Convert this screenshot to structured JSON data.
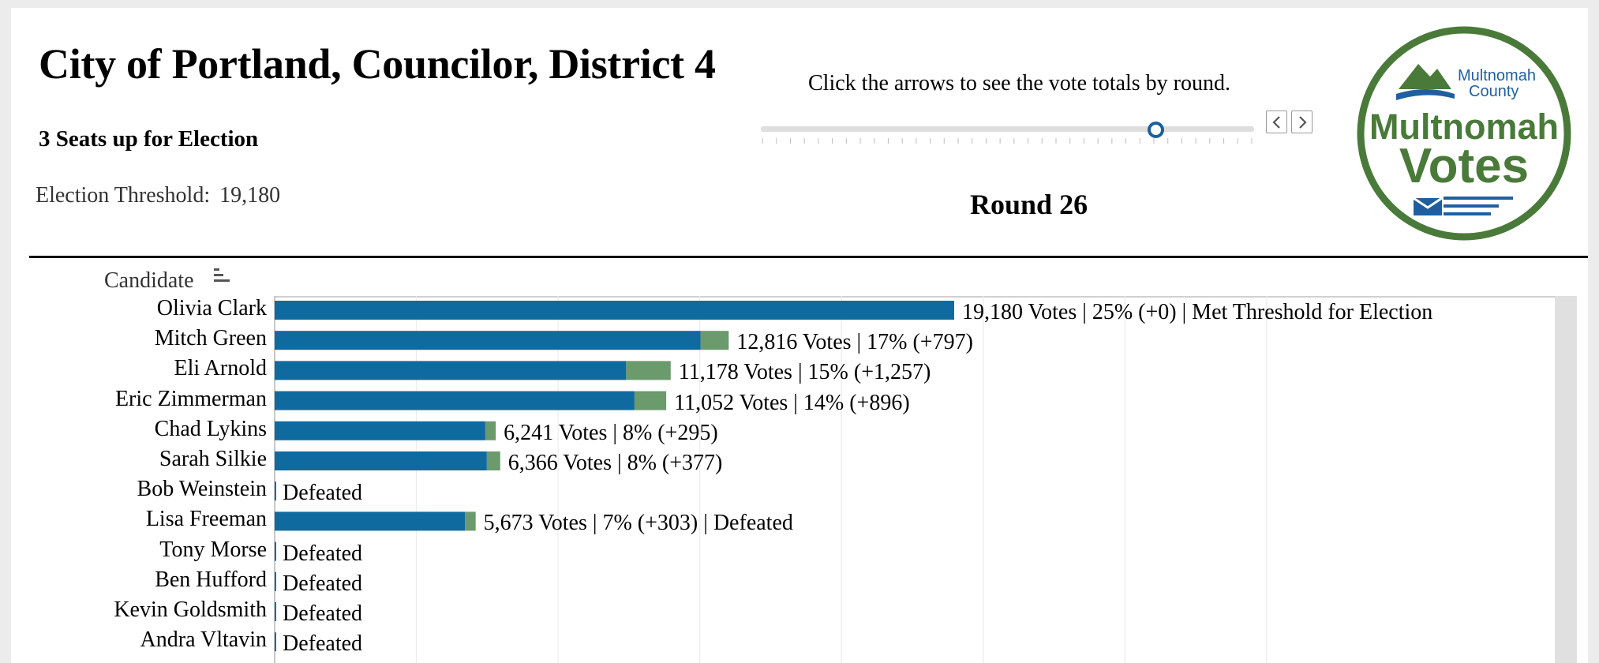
{
  "header": {
    "title": "City of Portland, Councilor, District 4",
    "subtitle": "3 Seats up for Election",
    "threshold_label": "Election Threshold:",
    "threshold_value": "19,180"
  },
  "round_control": {
    "instruction": "Click the arrows to see the vote totals by round.",
    "round_label": "Round 26",
    "slider_position_fraction": 0.8,
    "tick_count": 36
  },
  "logo": {
    "top_text": "Multnomah",
    "top_text2": "County",
    "main_text": "Multnomah",
    "main_text2": "Votes",
    "color": "#4a7a3a",
    "icon": "mountain-river-icon"
  },
  "colors": {
    "votes_bar": "#0f6aa0",
    "transfer_bar": "#6b9a6c",
    "divider": "#000000"
  },
  "chart_data": {
    "type": "bar",
    "orientation": "horizontal",
    "column_header": "Candidate",
    "x_max": 29000,
    "gridlines": true,
    "series": [
      {
        "name": "votes",
        "values": [
          19180,
          12019,
          9921,
          10156,
          5946,
          5989,
          0,
          5370,
          0,
          0,
          0,
          0
        ]
      },
      {
        "name": "transfer",
        "values": [
          0,
          797,
          1257,
          896,
          295,
          377,
          0,
          303,
          0,
          0,
          0,
          0
        ]
      }
    ],
    "categories": [
      "Olivia Clark",
      "Mitch Green",
      "Eli Arnold",
      "Eric Zimmerman",
      "Chad Lykins",
      "Sarah Silkie",
      "Bob Weinstein",
      "Lisa Freeman",
      "Tony Morse",
      "Ben Hufford",
      "Kevin Goldsmith",
      "Andra Vltavin"
    ],
    "labels": [
      "19,180 Votes | 25% (+0) | Met Threshold for Election",
      "12,816 Votes | 17% (+797)",
      "11,178 Votes | 15% (+1,257)",
      "11,052 Votes | 14% (+896)",
      "6,241 Votes | 8% (+295)",
      "6,366 Votes | 8% (+377)",
      "Defeated",
      "5,673 Votes | 7% (+303) | Defeated",
      "Defeated",
      "Defeated",
      "Defeated",
      "Defeated"
    ]
  }
}
